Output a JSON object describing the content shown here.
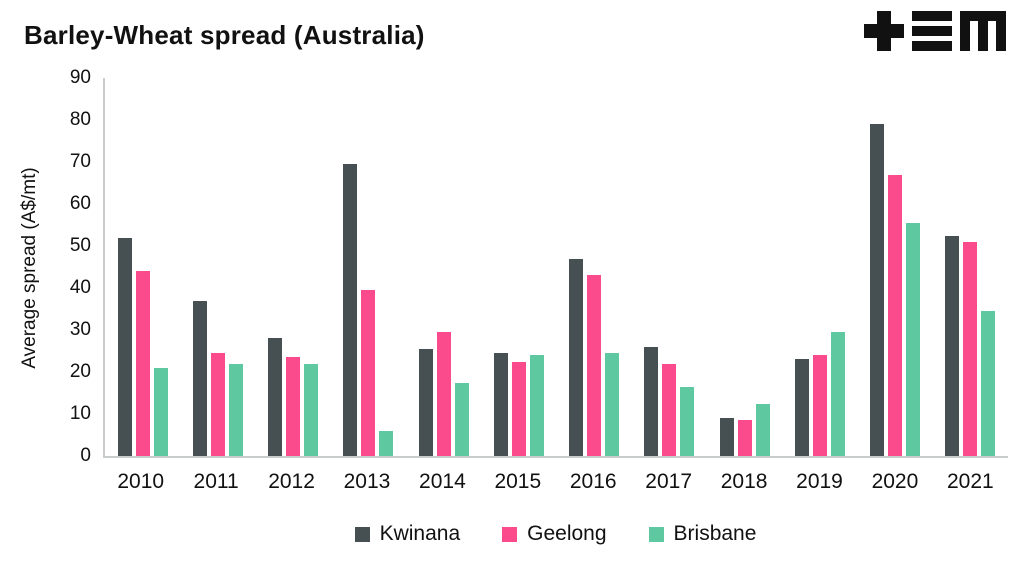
{
  "header": {
    "title": "Barley-Wheat spread (Australia)"
  },
  "icons": {
    "logo": "tem-logo"
  },
  "chart_data": {
    "type": "bar",
    "title": "Barley-Wheat spread (Australia)",
    "xlabel": "",
    "ylabel": "Average spread (A$/mt)",
    "ylim": [
      0,
      90
    ],
    "ytick_step": 10,
    "grid": false,
    "legend_position": "bottom",
    "categories": [
      "2010",
      "2011",
      "2012",
      "2013",
      "2014",
      "2015",
      "2016",
      "2017",
      "2018",
      "2019",
      "2020",
      "2021"
    ],
    "series": [
      {
        "name": "Kwinana",
        "color": "#465053",
        "values": [
          52,
          37,
          28,
          69.5,
          25.5,
          24.5,
          47,
          26,
          9,
          23,
          79,
          52.5
        ]
      },
      {
        "name": "Geelong",
        "color": "#FB4B8C",
        "values": [
          44,
          24.5,
          23.5,
          39.5,
          29.5,
          22.5,
          43,
          22,
          8.5,
          24,
          67,
          51
        ]
      },
      {
        "name": "Brisbane",
        "color": "#5EC9A0",
        "values": [
          21,
          22,
          22,
          6,
          17.5,
          24,
          24.5,
          16.5,
          12.5,
          29.5,
          55.5,
          34.5
        ]
      }
    ]
  }
}
